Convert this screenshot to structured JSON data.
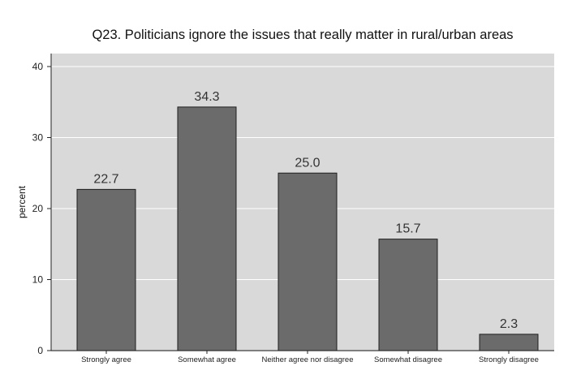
{
  "chart_data": {
    "type": "bar",
    "title": "Q23. Politicians ignore the issues that really matter in rural/urban areas",
    "ylabel": "percent",
    "xlabel": "",
    "categories": [
      "Strongly agree",
      "Somewhat agree",
      "Neither agree nor disagree",
      "Somewhat disagree",
      "Strongly disagree"
    ],
    "values": [
      22.7,
      34.3,
      25.0,
      15.7,
      2.3
    ],
    "value_labels": [
      "22.7",
      "34.3",
      "25.0",
      "15.7",
      "2.3"
    ],
    "ylim": [
      0,
      40
    ],
    "yticks": [
      0,
      10,
      20,
      30,
      40
    ],
    "grid": true,
    "colors": {
      "plot_background": "#d9d9d9",
      "bar_fill": "#6b6b6b",
      "bar_edge": "#1e1e1e",
      "grid": "#ffffff"
    }
  }
}
